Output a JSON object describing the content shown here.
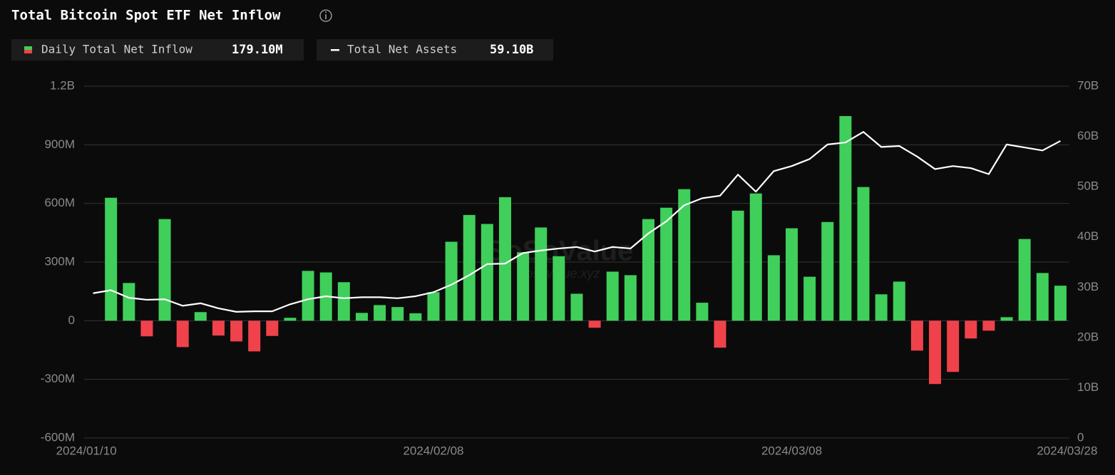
{
  "chart_data": {
    "type": "bar-line",
    "title": "Total Bitcoin Spot ETF Net Inflow",
    "categories": [
      "2024/01/10",
      null,
      null,
      null,
      null,
      null,
      null,
      null,
      null,
      null,
      null,
      null,
      null,
      null,
      null,
      null,
      null,
      null,
      null,
      "2024/02/08",
      null,
      null,
      null,
      null,
      null,
      null,
      null,
      null,
      null,
      null,
      null,
      null,
      null,
      null,
      null,
      null,
      null,
      null,
      null,
      "2024/03/08",
      null,
      null,
      null,
      null,
      null,
      null,
      null,
      null,
      null,
      null,
      null,
      null,
      null,
      null,
      "2024/03/28"
    ],
    "series": [
      {
        "name": "Daily Total Net Inflow",
        "legend_value": "179.10M",
        "color": "#3fcf5a",
        "negative_color": "#f0424a",
        "values": [
          null,
          629000000,
          193000000,
          -80000000,
          520000000,
          -135000000,
          44000000,
          -76000000,
          -106000000,
          -157000000,
          -78000000,
          15000000,
          255000000,
          247000000,
          197000000,
          40000000,
          80000000,
          70000000,
          38000000,
          146000000,
          404000000,
          541000000,
          495000000,
          632000000,
          350000000,
          477000000,
          330000000,
          138000000,
          -36000000,
          251000000,
          233000000,
          520000000,
          578000000,
          673000000,
          92000000,
          -138000000,
          563000000,
          651000000,
          335000000,
          473000000,
          225000000,
          505000000,
          1047000000,
          684000000,
          135000000,
          200000000,
          -153000000,
          -324000000,
          -262000000,
          -91000000,
          -51000000,
          18000000,
          418000000,
          244000000,
          179100000
        ]
      },
      {
        "name": "Total Net Assets",
        "legend_value": "59.10B",
        "color": "#ffffff",
        "axis": "y2",
        "values": [
          28800000000,
          29400000000,
          27900000000,
          27500000000,
          27600000000,
          26300000000,
          26800000000,
          25800000000,
          25100000000,
          25200000000,
          25200000000,
          26600000000,
          27600000000,
          28200000000,
          27800000000,
          28000000000,
          28000000000,
          27800000000,
          28200000000,
          29000000000,
          30500000000,
          32400000000,
          34600000000,
          34700000000,
          36800000000,
          37300000000,
          37700000000,
          38000000000,
          37100000000,
          38000000000,
          37700000000,
          40700000000,
          43100000000,
          46300000000,
          47700000000,
          48200000000,
          52400000000,
          49000000000,
          53100000000,
          54100000000,
          55500000000,
          58400000000,
          58800000000,
          60900000000,
          57900000000,
          58100000000,
          56000000000,
          53500000000,
          54100000000,
          53700000000,
          52500000000,
          58400000000,
          57800000000,
          57200000000,
          59100000000
        ]
      }
    ],
    "ylim": [
      -600000000,
      1200000000
    ],
    "yticks": [
      {
        "value": -600000000,
        "label": "-600M"
      },
      {
        "value": -300000000,
        "label": "-300M"
      },
      0,
      {
        "value": 300000000,
        "label": "300M"
      },
      {
        "value": 600000000,
        "label": "600M"
      },
      {
        "value": 900000000,
        "label": "900M"
      },
      {
        "value": 1200000000,
        "label": "1.2B"
      }
    ],
    "y2lim": [
      0,
      70000000000
    ],
    "y2ticks": [
      0,
      {
        "value": 10000000000,
        "label": "10B"
      },
      {
        "value": 20000000000,
        "label": "20B"
      },
      {
        "value": 30000000000,
        "label": "30B"
      },
      {
        "value": 40000000000,
        "label": "40B"
      },
      {
        "value": 50000000000,
        "label": "50B"
      },
      {
        "value": 60000000000,
        "label": "60B"
      },
      {
        "value": 70000000000,
        "label": "70B"
      }
    ],
    "grid": true,
    "watermark": [
      "SoSoValue",
      "sosovalue.xyz"
    ]
  }
}
